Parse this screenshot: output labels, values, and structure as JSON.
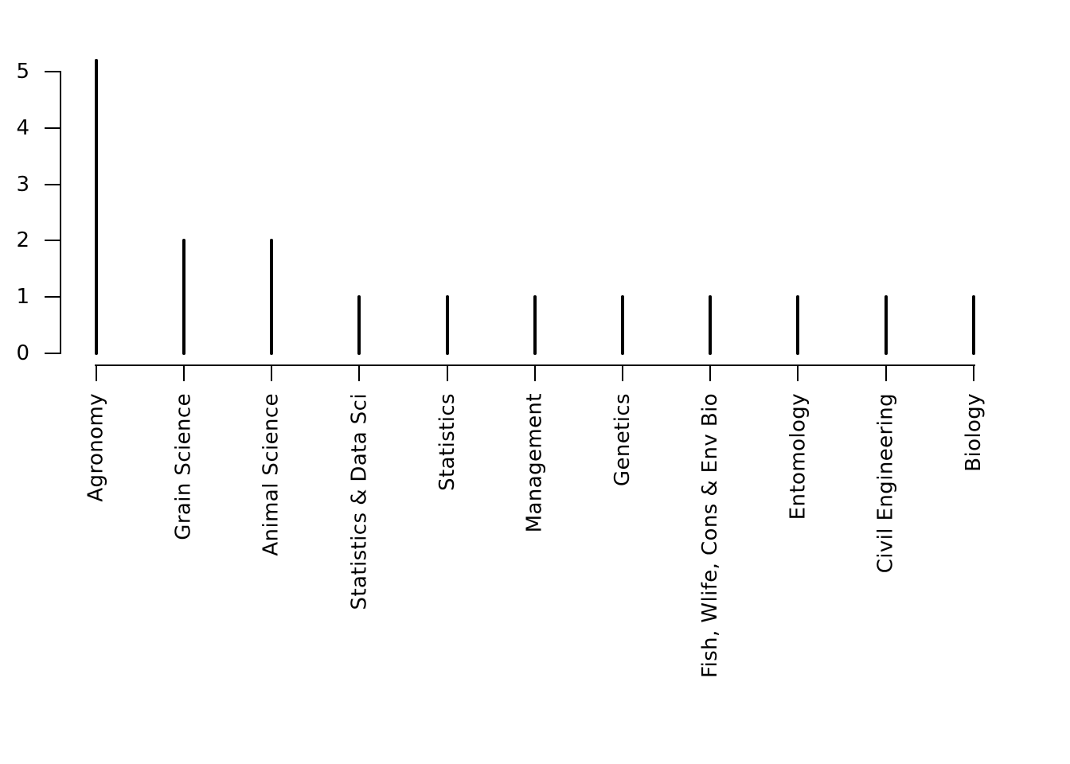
{
  "chart_data": {
    "type": "bar",
    "style": "vertical spike/needle plot (R base graphics, plot type='h')",
    "title": "",
    "xlabel": "",
    "ylabel": "",
    "categories": [
      "Agronomy",
      "Grain Science",
      "Animal Science",
      "Statistics & Data Sci",
      "Statistics",
      "Management",
      "Genetics",
      "Fish, Wlife, Cons & Env Bio",
      "Entomology",
      "Civil Engineering",
      "Biology"
    ],
    "values": [
      5.2,
      2,
      2,
      1,
      1,
      1,
      1,
      1,
      1,
      1,
      1
    ],
    "yticks": [
      0,
      1,
      2,
      3,
      4,
      5
    ],
    "ylim": [
      0,
      5.2
    ],
    "note": "first spike (Agronomy) extends slightly above the 5 tick, ending at about 5.2 (clipped at plot-region top)",
    "grid": false,
    "legend": "none",
    "x_tick_label_rotation_deg": -90,
    "colors": {
      "spike": "#000000",
      "axis": "#000000",
      "text": "#000000",
      "background": "#ffffff"
    }
  }
}
